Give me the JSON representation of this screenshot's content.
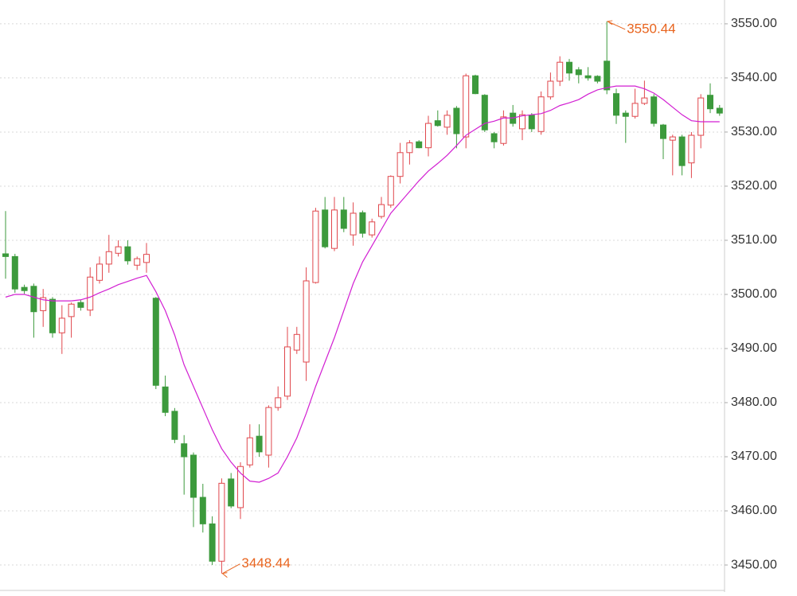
{
  "chart_data": {
    "type": "candlestick",
    "open": [
      3507.5,
      3507.0,
      3501.3,
      3501.5,
      3497.0,
      3499.1,
      3492.9,
      3495.9,
      3498.5,
      3497.1,
      3502.6,
      3505.6,
      3507.6,
      3508.8,
      3505.4,
      3505.9,
      3499.3,
      3482.9,
      3478.4,
      3472.4,
      3470.3,
      3462.5,
      3457.6,
      3450.7,
      3465.9,
      3460.6,
      3468.5,
      3473.8,
      3470.3,
      3479.1,
      3481.2,
      3489.7,
      3487.5,
      3502.2,
      3515.6,
      3508.5,
      3515.6,
      3511.0,
      3515.1,
      3511.0,
      3514.4,
      3516.5,
      3521.8,
      3526.2,
      3528.2,
      3527.1,
      3532.1,
      3530.9,
      3534.4,
      3529.1,
      3540.4,
      3536.8,
      3529.7,
      3527.9,
      3533.5,
      3530.6,
      3533.1,
      3530.1,
      3536.5,
      3539.4,
      3542.9,
      3541.5,
      3540.4,
      3540.3,
      3543.1,
      3537.1,
      3533.5,
      3532.9,
      3535.3,
      3536.5,
      3531.3,
      3528.5,
      3529.1,
      3524.3,
      3529.4,
      3536.8,
      3534.4
    ],
    "high": [
      3515.4,
      3507.5,
      3501.8,
      3502.0,
      3501.0,
      3499.5,
      3498.0,
      3498.5,
      3499.0,
      3505.0,
      3507.0,
      3511.0,
      3510.0,
      3510.0,
      3507.0,
      3509.5,
      3499.5,
      3485.0,
      3479.0,
      3474.0,
      3470.8,
      3465.0,
      3459.0,
      3466.0,
      3467.0,
      3469.0,
      3476.0,
      3476.0,
      3479.5,
      3483.0,
      3494.0,
      3494.0,
      3505.0,
      3516.0,
      3518.0,
      3518.0,
      3518.0,
      3517.0,
      3515.5,
      3514.0,
      3518.0,
      3522.0,
      3528.0,
      3528.5,
      3528.5,
      3533.0,
      3534.0,
      3534.0,
      3534.8,
      3540.8,
      3540.6,
      3537.0,
      3530.0,
      3534.0,
      3535.0,
      3534.0,
      3533.5,
      3537.5,
      3541.0,
      3544.0,
      3543.5,
      3542.0,
      3542.0,
      3540.5,
      3550.44,
      3538.0,
      3534.0,
      3538.0,
      3539.5,
      3537.0,
      3531.5,
      3529.5,
      3529.5,
      3530.0,
      3537.0,
      3539.0,
      3535.0
    ],
    "low": [
      3502.9,
      3500.3,
      3500.1,
      3492.0,
      3494.0,
      3492.0,
      3489.0,
      3492.0,
      3497.0,
      3496.0,
      3502.0,
      3504.0,
      3507.0,
      3505.5,
      3504.5,
      3504.0,
      3482.5,
      3477.5,
      3472.5,
      3463.0,
      3457.0,
      3456.0,
      3450.0,
      3448.44,
      3460.5,
      3458.5,
      3468.0,
      3470.0,
      3468.0,
      3478.5,
      3480.5,
      3489.0,
      3484.0,
      3502.0,
      3508.5,
      3508.0,
      3511.5,
      3509.0,
      3510.5,
      3510.5,
      3514.0,
      3516.0,
      3520.5,
      3524.0,
      3527.0,
      3525.5,
      3531.0,
      3529.5,
      3527.0,
      3527.0,
      3537.0,
      3530.0,
      3527.0,
      3527.5,
      3531.0,
      3528.5,
      3530.0,
      3529.5,
      3536.0,
      3538.5,
      3539.5,
      3539.0,
      3539.5,
      3539.0,
      3537.0,
      3531.5,
      3528.0,
      3532.5,
      3535.0,
      3531.0,
      3525.0,
      3522.0,
      3522.0,
      3521.5,
      3527.0,
      3533.5,
      3533.0
    ],
    "close": [
      3507.0,
      3501.0,
      3500.7,
      3496.8,
      3499.4,
      3492.9,
      3495.6,
      3498.2,
      3497.6,
      3503.2,
      3505.6,
      3507.9,
      3508.8,
      3506.2,
      3506.6,
      3507.4,
      3483.2,
      3478.2,
      3473.2,
      3470.0,
      3462.5,
      3457.6,
      3450.7,
      3465.1,
      3460.9,
      3468.2,
      3473.5,
      3470.9,
      3479.1,
      3480.9,
      3490.3,
      3492.6,
      3502.5,
      3515.4,
      3508.8,
      3515.6,
      3512.2,
      3515.0,
      3511.3,
      3513.4,
      3516.6,
      3521.8,
      3526.2,
      3528.0,
      3527.1,
      3531.6,
      3531.2,
      3533.1,
      3529.7,
      3540.4,
      3537.1,
      3530.4,
      3528.2,
      3532.8,
      3531.6,
      3533.2,
      3530.6,
      3536.5,
      3539.4,
      3542.9,
      3540.9,
      3540.6,
      3540.0,
      3539.4,
      3537.8,
      3533.1,
      3532.9,
      3535.3,
      3536.3,
      3531.6,
      3528.8,
      3529.1,
      3523.8,
      3529.4,
      3536.3,
      3534.3,
      3533.5
    ],
    "ma": [
      3499.5,
      3500,
      3500,
      3499.5,
      3499,
      3498.8,
      3498.8,
      3498.8,
      3499,
      3499.5,
      3500.3,
      3501,
      3501.8,
      3502.4,
      3503,
      3503.5,
      3500.5,
      3497,
      3492.5,
      3487,
      3483,
      3479,
      3475,
      3471.5,
      3469,
      3467,
      3465.5,
      3465.3,
      3466,
      3467,
      3470,
      3473.5,
      3478,
      3483,
      3487.5,
      3492,
      3497,
      3502,
      3506,
      3509,
      3512,
      3515,
      3517,
      3519,
      3521,
      3522.8,
      3524.2,
      3525.7,
      3527.5,
      3529.4,
      3530.5,
      3531.6,
      3532,
      3532.6,
      3532.6,
      3533,
      3533.2,
      3533.4,
      3534,
      3534.9,
      3535.4,
      3536,
      3537,
      3537.8,
      3538.2,
      3538.5,
      3538.5,
      3538.5,
      3538,
      3537.2,
      3536,
      3534.6,
      3533.2,
      3532.1,
      3531.9,
      3531.9,
      3531.9
    ],
    "up_color": "#e0474c",
    "down_color": "#3c9a3c",
    "ma_color": "#d21fd2",
    "annotation_color": "#e8641e",
    "ylim": [
      3445.3,
      3554.4
    ],
    "yticks": [
      {
        "value": 3450,
        "label": "3450.00"
      },
      {
        "value": 3460,
        "label": "3460.00"
      },
      {
        "value": 3470,
        "label": "3470.00"
      },
      {
        "value": 3480,
        "label": "3480.00"
      },
      {
        "value": 3490,
        "label": "3490.00"
      },
      {
        "value": 3500,
        "label": "3500.00"
      },
      {
        "value": 3510,
        "label": "3510.00"
      },
      {
        "value": 3520,
        "label": "3520.00"
      },
      {
        "value": 3530,
        "label": "3530.00"
      },
      {
        "value": 3540,
        "label": "3540.00"
      },
      {
        "value": 3550,
        "label": "3550.00"
      }
    ],
    "grid": true
  }
}
